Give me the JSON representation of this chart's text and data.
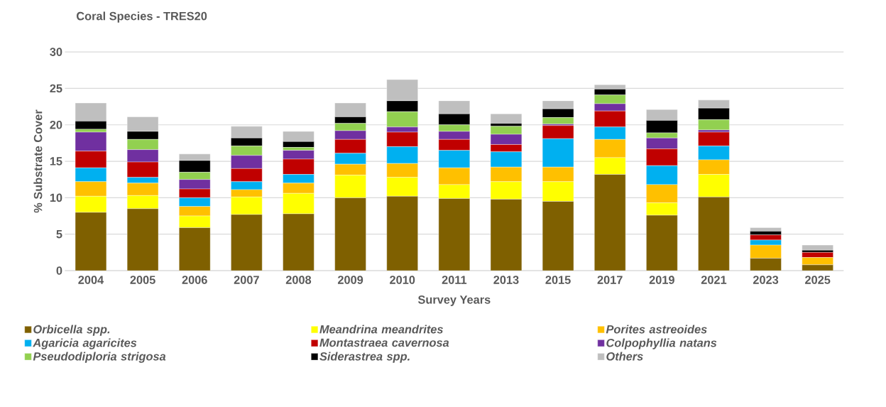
{
  "chart_data": {
    "type": "bar",
    "stacked": true,
    "title": "Coral Species - TRES20",
    "xlabel": "Survey Years",
    "ylabel": "% Substrate Cover",
    "categories": [
      "2004",
      "2005",
      "2006",
      "2007",
      "2008",
      "2009",
      "2010",
      "2011",
      "2013",
      "2015",
      "2017",
      "2019",
      "2021",
      "2023",
      "2025"
    ],
    "ylim": [
      0,
      30
    ],
    "yticks": [
      0,
      5,
      10,
      15,
      20,
      25,
      30
    ],
    "grid": "y",
    "legend": "bottom",
    "series": [
      {
        "name": "Orbicella spp.",
        "color": "#7f6000",
        "values": [
          8.0,
          8.5,
          5.9,
          7.7,
          7.8,
          10.0,
          10.2,
          9.9,
          9.8,
          9.5,
          13.2,
          7.6,
          10.1,
          1.7,
          0.8
        ]
      },
      {
        "name": "Meandrina meandrites",
        "color": "#ffff00",
        "values": [
          2.2,
          1.8,
          1.6,
          2.4,
          2.8,
          3.1,
          2.6,
          1.9,
          2.4,
          2.7,
          2.3,
          1.7,
          3.1,
          0,
          0
        ]
      },
      {
        "name": "Porites astreoides",
        "color": "#ffc000",
        "values": [
          2.0,
          1.7,
          1.3,
          1.0,
          1.4,
          1.5,
          1.9,
          2.3,
          2.0,
          2.0,
          2.5,
          2.5,
          2.0,
          1.8,
          1.0
        ]
      },
      {
        "name": "Agaricia agaricites",
        "color": "#00b0f0",
        "values": [
          1.9,
          0.8,
          1.2,
          1.1,
          1.2,
          1.5,
          2.3,
          2.4,
          2.1,
          3.9,
          1.7,
          2.6,
          1.9,
          0.7,
          0
        ]
      },
      {
        "name": "Montastraea cavernosa",
        "color": "#c00000",
        "values": [
          2.3,
          2.1,
          1.2,
          1.8,
          2.1,
          1.9,
          2.0,
          1.5,
          1.0,
          1.8,
          2.2,
          2.3,
          1.9,
          0.7,
          0.7
        ]
      },
      {
        "name": "Colpophyllia natans",
        "color": "#7030a0",
        "values": [
          2.6,
          1.7,
          1.3,
          1.8,
          1.2,
          1.2,
          0.7,
          1.1,
          1.4,
          0.2,
          1.0,
          1.5,
          0.3,
          0,
          0
        ]
      },
      {
        "name": "Pseudodiploria strigosa",
        "color": "#92d050",
        "values": [
          0.4,
          1.4,
          1.0,
          1.3,
          0.4,
          1.0,
          2.1,
          0.9,
          1.1,
          0.9,
          1.2,
          0.7,
          1.4,
          0,
          0
        ]
      },
      {
        "name": "Siderastrea spp.",
        "color": "#000000",
        "values": [
          1.1,
          1.1,
          1.6,
          1.1,
          0.8,
          0.9,
          1.5,
          1.5,
          0.4,
          1.2,
          0.8,
          1.7,
          1.6,
          0.5,
          0.3
        ]
      },
      {
        "name": "Others",
        "color": "#bfbfbf",
        "values": [
          2.5,
          2.0,
          0.9,
          1.6,
          1.4,
          1.9,
          2.9,
          1.8,
          1.3,
          1.1,
          0.6,
          1.5,
          1.1,
          0.5,
          0.7
        ]
      }
    ]
  }
}
